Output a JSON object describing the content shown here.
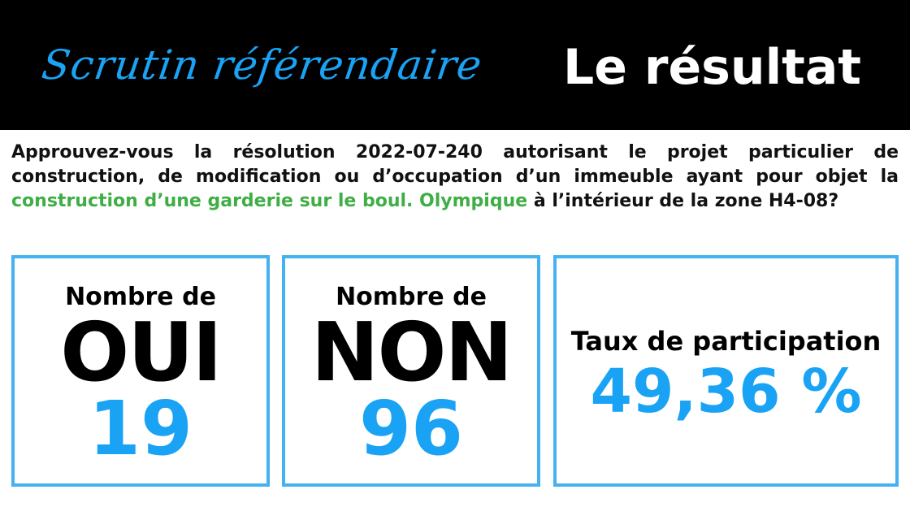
{
  "header": {
    "script_title": "Scrutin référendaire",
    "result_title": "Le résultat"
  },
  "question": {
    "part1": "Approuvez-vous la résolution 2022-07-240 autorisant le projet particulier de construction, de modification ou d’occupation d’un immeuble ayant pour objet la ",
    "highlight": "construction d’une garderie sur le boul. Olympique",
    "part2": " à l’intérieur de la zone H4-08?"
  },
  "cards": {
    "oui": {
      "label": "Nombre de",
      "big": "OUI",
      "value": "19"
    },
    "non": {
      "label": "Nombre de",
      "big": "NON",
      "value": "96"
    },
    "taux": {
      "label": "Taux de participation",
      "value": "49,36 %"
    }
  },
  "colors": {
    "accent_blue": "#1aa3f5",
    "border_blue": "#45b2f0",
    "highlight_green": "#3fae45",
    "header_bg": "#000000"
  }
}
